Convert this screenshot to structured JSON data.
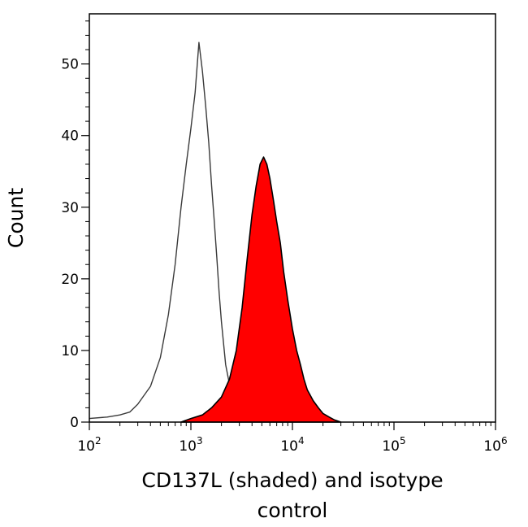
{
  "chart_data": {
    "type": "area",
    "title": "",
    "xlabel": "CD137L (shaded) and isotype control",
    "xlabel_lines": [
      "CD137L (shaded) and isotype",
      "control"
    ],
    "ylabel": "Count",
    "x_scale": "log10",
    "xlim": [
      100,
      1000000
    ],
    "ylim": [
      0,
      57
    ],
    "x_ticks": [
      {
        "value": 100,
        "base": "10",
        "exp": "2"
      },
      {
        "value": 1000,
        "base": "10",
        "exp": "3"
      },
      {
        "value": 10000,
        "base": "10",
        "exp": "4"
      },
      {
        "value": 100000,
        "base": "10",
        "exp": "5"
      },
      {
        "value": 1000000,
        "base": "10",
        "exp": "6"
      }
    ],
    "y_ticks": [
      0,
      10,
      20,
      30,
      40,
      50
    ],
    "grid": false,
    "series": [
      {
        "style": "outline",
        "color": "#3a3a3a",
        "x": [
          100,
          150,
          200,
          250,
          300,
          400,
          500,
          600,
          700,
          800,
          900,
          1000,
          1100,
          1200,
          1300,
          1400,
          1500,
          1600,
          1700,
          1800,
          1900,
          2000,
          2200,
          2500,
          2800,
          3200,
          3600,
          4000,
          5000,
          6000,
          8000
        ],
        "y": [
          0.5,
          0.7,
          1.0,
          1.4,
          2.5,
          5,
          9,
          15,
          22,
          30,
          36,
          41,
          46,
          53,
          49,
          44,
          39,
          33,
          28,
          23,
          18,
          14,
          8,
          4,
          2.5,
          1.5,
          0.8,
          0.5,
          0.3,
          0.1,
          0
        ]
      },
      {
        "style": "filled",
        "color": "#ff0000",
        "x": [
          800,
          1000,
          1300,
          1600,
          2000,
          2400,
          2800,
          3200,
          3600,
          4000,
          4400,
          4800,
          5200,
          5600,
          6000,
          6500,
          7000,
          7600,
          8200,
          9000,
          10000,
          11000,
          12000,
          13000,
          14000,
          16000,
          18000,
          20000,
          23000,
          26000,
          30000
        ],
        "y": [
          0,
          0.5,
          1.0,
          2.0,
          3.5,
          6,
          10,
          16,
          23,
          29,
          33,
          36,
          37,
          36,
          34,
          31,
          28,
          25,
          21,
          17,
          13,
          10,
          8,
          6,
          4.5,
          3,
          2,
          1.2,
          0.7,
          0.3,
          0
        ]
      }
    ]
  }
}
